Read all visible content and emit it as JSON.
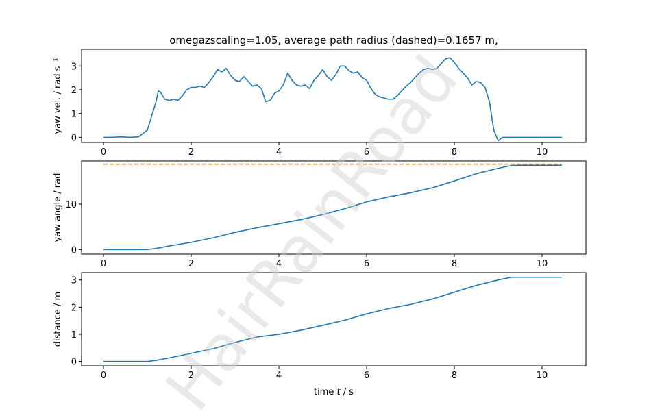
{
  "title": "omegazscaling=1.05, average path radius (dashed)=0.1657 m,",
  "watermark": "HairRainRoad",
  "colors": {
    "series": "#1f77b4",
    "dashed": "#ff7f0e",
    "axes": "#000000"
  },
  "chart_data": [
    {
      "type": "line",
      "ylabel": "yaw vel. / rad s⁻¹",
      "xlim": [
        -0.5,
        11.0
      ],
      "ylim": [
        -0.22,
        3.7
      ],
      "xticks": [
        0,
        2,
        4,
        6,
        8,
        10
      ],
      "xtick_labels": [
        "0",
        "2",
        "4",
        "6",
        "8",
        "10"
      ],
      "yticks": [
        0,
        1,
        2,
        3
      ],
      "ytick_labels": [
        "0",
        "1",
        "2",
        "3"
      ],
      "grid": false,
      "series": [
        {
          "x": [
            0,
            0.2,
            0.4,
            0.6,
            0.8,
            1.0,
            1.1,
            1.2,
            1.25,
            1.3,
            1.4,
            1.5,
            1.6,
            1.7,
            1.8,
            1.9,
            2.0,
            2.1,
            2.2,
            2.3,
            2.4,
            2.5,
            2.6,
            2.7,
            2.8,
            2.9,
            3.0,
            3.1,
            3.2,
            3.3,
            3.4,
            3.5,
            3.6,
            3.7,
            3.8,
            3.9,
            4.0,
            4.1,
            4.2,
            4.3,
            4.4,
            4.5,
            4.6,
            4.7,
            4.8,
            4.9,
            5.0,
            5.1,
            5.2,
            5.3,
            5.4,
            5.5,
            5.6,
            5.7,
            5.8,
            5.9,
            6.0,
            6.1,
            6.2,
            6.3,
            6.4,
            6.5,
            6.6,
            6.7,
            6.8,
            6.9,
            7.0,
            7.1,
            7.2,
            7.3,
            7.4,
            7.5,
            7.6,
            7.7,
            7.8,
            7.9,
            8.0,
            8.1,
            8.2,
            8.3,
            8.4,
            8.5,
            8.6,
            8.7,
            8.8,
            8.9,
            9.0,
            9.1,
            9.2,
            9.3,
            9.4,
            9.5,
            9.6,
            9.7,
            9.8,
            10.0,
            10.45
          ],
          "y": [
            0,
            0,
            0.02,
            0,
            0.02,
            0.3,
            0.9,
            1.5,
            1.95,
            1.9,
            1.6,
            1.55,
            1.6,
            1.55,
            1.75,
            2.0,
            2.1,
            2.1,
            2.15,
            2.1,
            2.3,
            2.55,
            2.85,
            2.75,
            2.9,
            2.6,
            2.4,
            2.35,
            2.55,
            2.35,
            2.15,
            2.2,
            2.05,
            1.5,
            1.55,
            1.85,
            1.95,
            2.2,
            2.7,
            2.4,
            2.2,
            2.15,
            2.2,
            2.05,
            2.4,
            2.6,
            2.85,
            2.55,
            2.4,
            2.65,
            3.0,
            3.0,
            2.8,
            2.7,
            2.75,
            2.5,
            2.4,
            2.05,
            1.8,
            1.7,
            1.65,
            1.6,
            1.6,
            1.75,
            1.95,
            2.15,
            2.3,
            2.5,
            2.7,
            2.85,
            2.9,
            2.85,
            2.9,
            3.1,
            3.3,
            3.35,
            3.15,
            2.9,
            2.7,
            2.5,
            2.2,
            2.35,
            2.3,
            2.1,
            1.5,
            0.3,
            -0.15,
            0,
            0,
            0,
            0,
            0,
            0,
            0,
            0,
            0,
            0
          ]
        }
      ]
    },
    {
      "type": "line",
      "ylabel": "yaw angle / rad",
      "xlim": [
        -0.5,
        11.0
      ],
      "ylim": [
        -1.0,
        19.5
      ],
      "xticks": [
        0,
        2,
        4,
        6,
        8,
        10
      ],
      "xtick_labels": [
        "0",
        "2",
        "4",
        "6",
        "8",
        "10"
      ],
      "yticks": [
        0,
        10
      ],
      "ytick_labels": [
        "0",
        "10"
      ],
      "grid": false,
      "series": [
        {
          "x": [
            0,
            1.0,
            1.2,
            1.5,
            2.0,
            2.5,
            3.0,
            3.5,
            4.0,
            4.5,
            5.0,
            5.5,
            6.0,
            6.5,
            7.0,
            7.5,
            8.0,
            8.5,
            9.0,
            9.3,
            9.5,
            10.0,
            10.45
          ],
          "y": [
            0,
            0,
            0.25,
            0.8,
            1.6,
            2.6,
            3.8,
            4.8,
            5.7,
            6.6,
            7.7,
            9.0,
            10.5,
            11.6,
            12.5,
            13.6,
            15.1,
            16.7,
            17.9,
            18.5,
            18.55,
            18.55,
            18.55
          ]
        },
        {
          "style": "dashed",
          "x": [
            0,
            10.45
          ],
          "y": [
            18.8,
            18.8
          ]
        }
      ]
    },
    {
      "type": "line",
      "ylabel": "distance / m",
      "xlabel": "time t / s",
      "xlim": [
        -0.5,
        11.0
      ],
      "ylim": [
        -0.16,
        3.27
      ],
      "xticks": [
        0,
        2,
        4,
        6,
        8,
        10
      ],
      "xtick_labels": [
        "0",
        "2",
        "4",
        "6",
        "8",
        "10"
      ],
      "yticks": [
        0,
        1,
        2,
        3
      ],
      "ytick_labels": [
        "0",
        "1",
        "2",
        "3"
      ],
      "grid": false,
      "series": [
        {
          "x": [
            0,
            1.0,
            1.2,
            1.5,
            2.0,
            2.5,
            3.0,
            3.5,
            4.0,
            4.5,
            5.0,
            5.5,
            6.0,
            6.5,
            7.0,
            7.5,
            8.0,
            8.5,
            9.0,
            9.3,
            9.5,
            10.0,
            10.45
          ],
          "y": [
            0,
            0,
            0.04,
            0.13,
            0.3,
            0.47,
            0.7,
            0.9,
            1.0,
            1.15,
            1.33,
            1.52,
            1.75,
            1.95,
            2.1,
            2.3,
            2.55,
            2.8,
            3.0,
            3.1,
            3.1,
            3.1,
            3.1
          ]
        }
      ]
    }
  ]
}
